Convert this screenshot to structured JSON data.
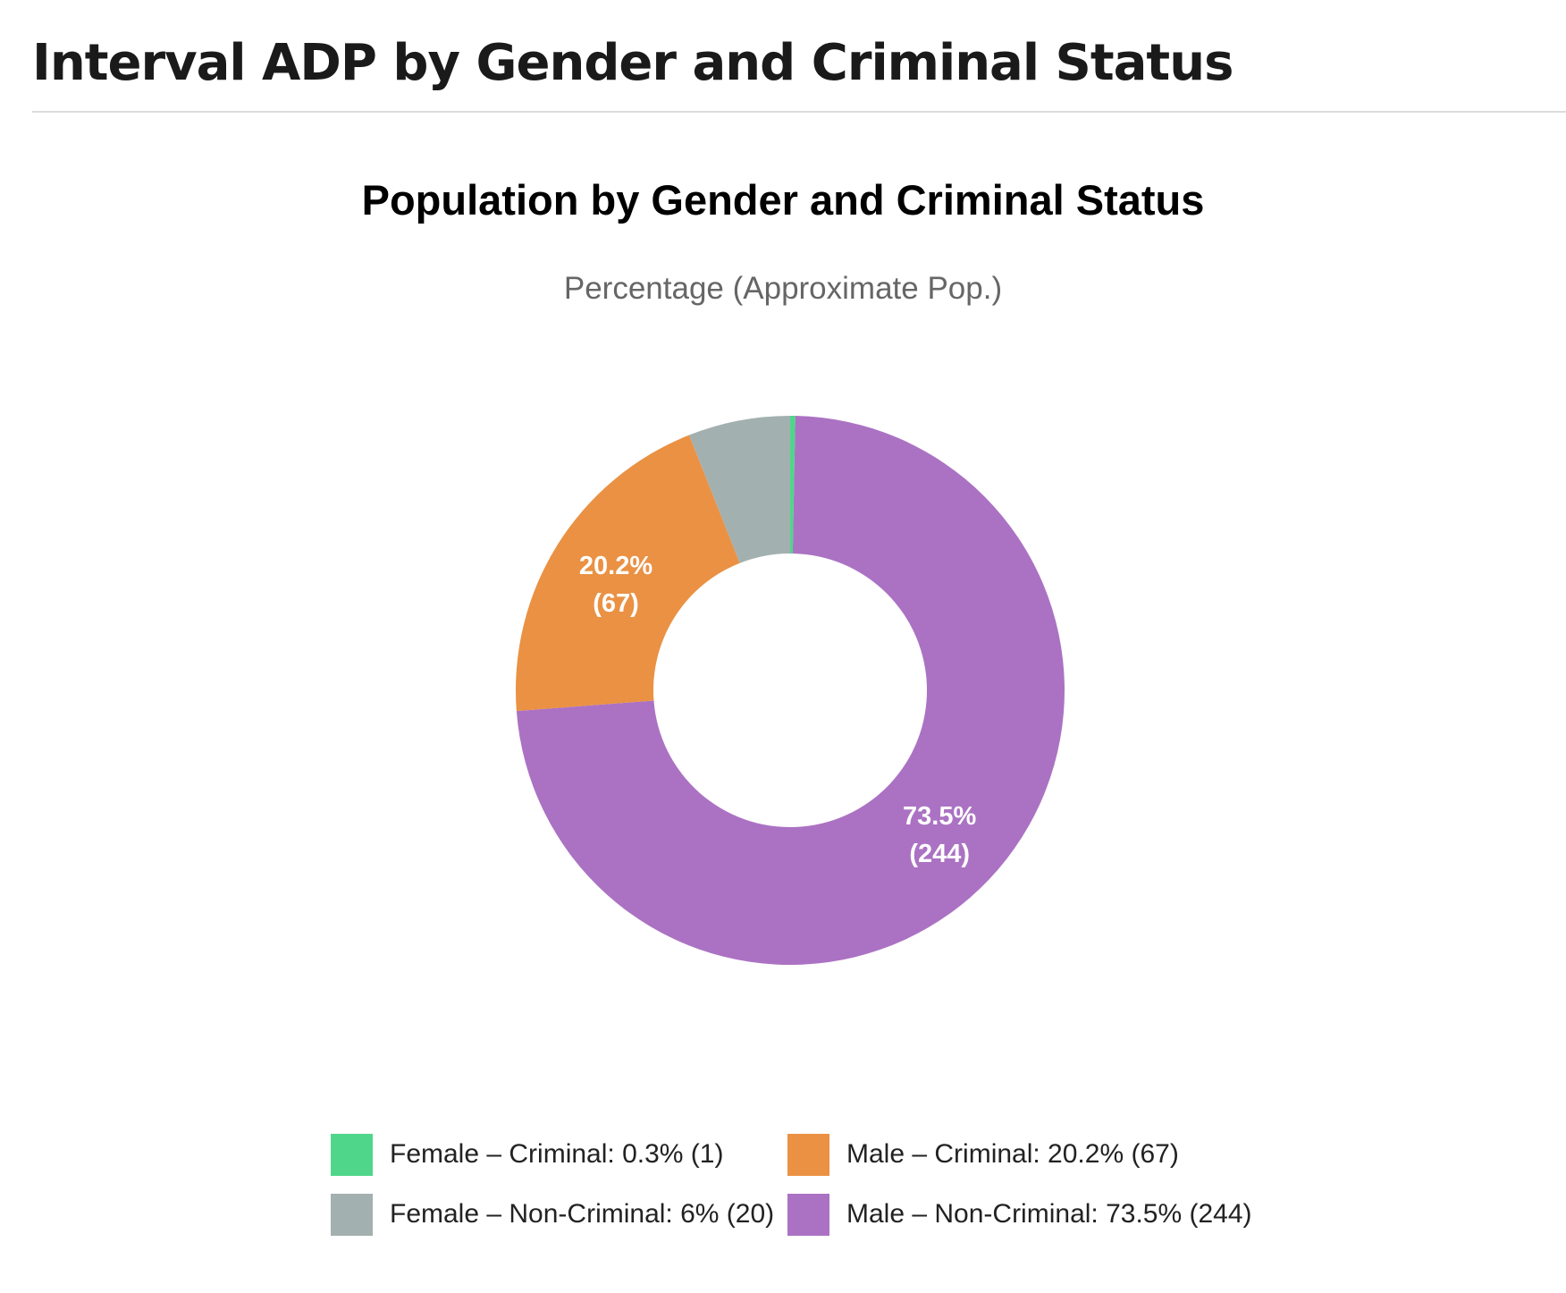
{
  "page": {
    "title": "Interval ADP by Gender and Criminal Status"
  },
  "chart_data": {
    "type": "pie",
    "title": "Population by Gender and Criminal Status",
    "subtitle": "Percentage (Approximate Pop.)",
    "donut": true,
    "legend_position": "bottom",
    "slices": [
      {
        "label": "Female – Criminal",
        "percent": 0.3,
        "count": 1,
        "color": "#4fd68a",
        "legend_text": "Female – Criminal: 0.3% (1)"
      },
      {
        "label": "Male – Non-Criminal",
        "percent": 73.5,
        "count": 244,
        "color": "#ab72c3",
        "legend_text": "Male – Non-Criminal: 73.5% (244)",
        "data_label_percent": "73.5%",
        "data_label_count": "(244)"
      },
      {
        "label": "Male – Criminal",
        "percent": 20.2,
        "count": 67,
        "color": "#ea9144",
        "legend_text": "Male – Criminal: 20.2% (67)",
        "data_label_percent": "20.2%",
        "data_label_count": "(67)"
      },
      {
        "label": "Female – Non-Criminal",
        "percent": 6,
        "count": 20,
        "color": "#a3b0b0",
        "legend_text": "Female – Non-Criminal: 6% (20)"
      }
    ],
    "legend_order": [
      "Female – Criminal",
      "Male – Criminal",
      "Female – Non-Criminal",
      "Male – Non-Criminal"
    ]
  }
}
